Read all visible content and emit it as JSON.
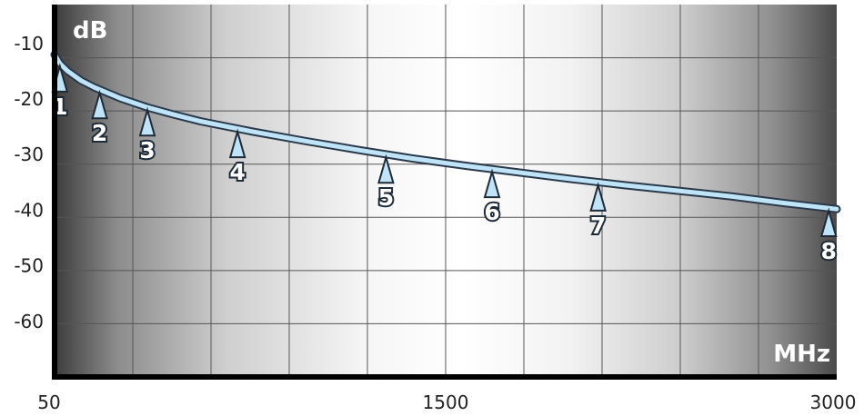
{
  "chart_data": {
    "type": "line",
    "ylabel": "dB",
    "xlabel": "MHz",
    "xlim": [
      50,
      3000
    ],
    "ylim": [
      -70,
      -3
    ],
    "x_ticks": [
      "50",
      "1500",
      "3000"
    ],
    "y_ticks": [
      {
        "value": -10,
        "label": "-10"
      },
      {
        "value": -20,
        "label": "-20"
      },
      {
        "value": -30,
        "label": "-30"
      },
      {
        "value": -40,
        "label": "-40"
      },
      {
        "value": -50,
        "label": "-50"
      },
      {
        "value": -60,
        "label": "-60"
      }
    ],
    "grid": true,
    "series": [
      {
        "x": [
          50,
          70,
          100,
          150,
          200,
          300,
          400,
          500,
          600,
          800,
          1000,
          1200,
          1400,
          1600,
          1800,
          2000,
          2200,
          2400,
          2600,
          2800,
          3000
        ],
        "y": [
          -12.0,
          -13.6,
          -15.0,
          -16.7,
          -17.9,
          -19.9,
          -21.5,
          -22.8,
          -24.0,
          -25.9,
          -27.6,
          -29.2,
          -30.7,
          -32.0,
          -33.2,
          -34.4,
          -35.5,
          -36.5,
          -37.5,
          -38.7,
          -39.8
        ]
      }
    ],
    "markers": [
      {
        "label": "1",
        "x": 70,
        "y": -13.6
      },
      {
        "label": "2",
        "x": 220,
        "y": -18.4
      },
      {
        "label": "3",
        "x": 400,
        "y": -21.5
      },
      {
        "label": "4",
        "x": 740,
        "y": -25.4
      },
      {
        "label": "5",
        "x": 1300,
        "y": -30.0
      },
      {
        "label": "6",
        "x": 1700,
        "y": -32.6
      },
      {
        "label": "7",
        "x": 2100,
        "y": -35.0
      },
      {
        "label": "8",
        "x": 2970,
        "y": -39.6
      }
    ]
  }
}
